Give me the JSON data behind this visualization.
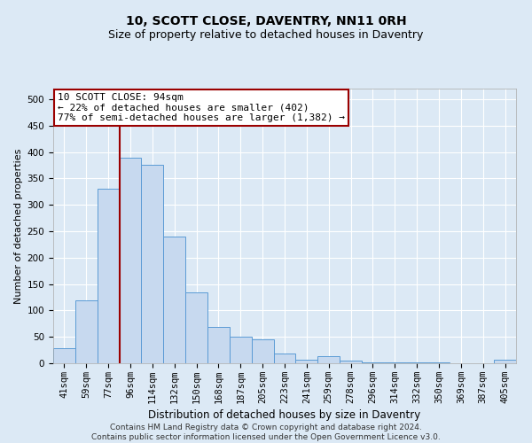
{
  "title": "10, SCOTT CLOSE, DAVENTRY, NN11 0RH",
  "subtitle": "Size of property relative to detached houses in Daventry",
  "xlabel": "Distribution of detached houses by size in Daventry",
  "ylabel": "Number of detached properties",
  "footer_line1": "Contains HM Land Registry data © Crown copyright and database right 2024.",
  "footer_line2": "Contains public sector information licensed under the Open Government Licence v3.0.",
  "categories": [
    "41sqm",
    "59sqm",
    "77sqm",
    "96sqm",
    "114sqm",
    "132sqm",
    "150sqm",
    "168sqm",
    "187sqm",
    "205sqm",
    "223sqm",
    "241sqm",
    "259sqm",
    "278sqm",
    "296sqm",
    "314sqm",
    "332sqm",
    "350sqm",
    "369sqm",
    "387sqm",
    "405sqm"
  ],
  "values": [
    28,
    119,
    330,
    390,
    375,
    240,
    135,
    68,
    50,
    45,
    18,
    6,
    13,
    5,
    2,
    1,
    1,
    1,
    0,
    0,
    6
  ],
  "bar_color": "#c7d9ef",
  "bar_edge_color": "#5b9bd5",
  "vline_x_index": 3,
  "vline_color": "#9b0000",
  "annotation_line1": "10 SCOTT CLOSE: 94sqm",
  "annotation_line2": "← 22% of detached houses are smaller (402)",
  "annotation_line3": "77% of semi-detached houses are larger (1,382) →",
  "annotation_box_facecolor": "white",
  "annotation_box_edgecolor": "#9b0000",
  "ylim": [
    0,
    520
  ],
  "yticks": [
    0,
    50,
    100,
    150,
    200,
    250,
    300,
    350,
    400,
    450,
    500
  ],
  "background_color": "#dce9f5",
  "plot_bg_color": "#dce9f5",
  "grid_color": "white",
  "title_fontsize": 10,
  "subtitle_fontsize": 9,
  "xlabel_fontsize": 8.5,
  "ylabel_fontsize": 8,
  "tick_fontsize": 7.5,
  "annotation_fontsize": 8,
  "footer_fontsize": 6.5
}
